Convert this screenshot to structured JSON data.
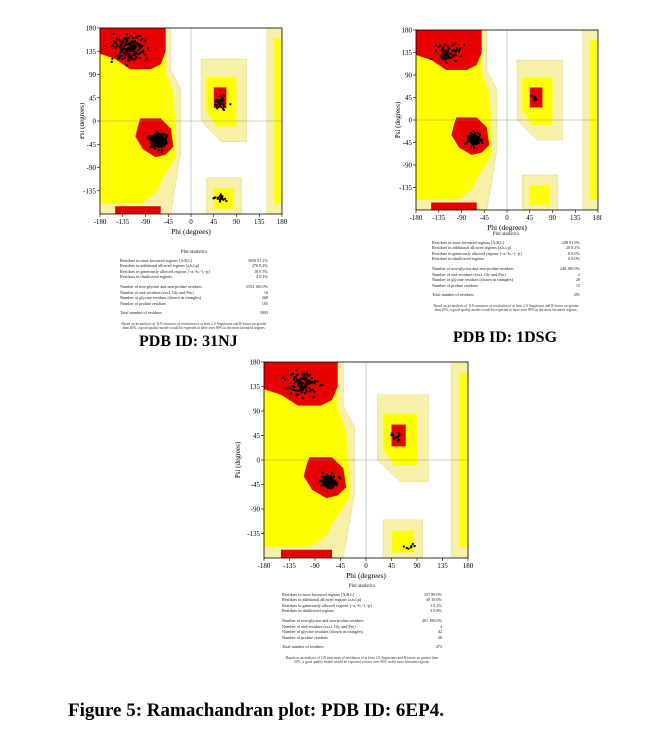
{
  "figure": {
    "caption": "Figure 5: Ramachandran plot: PDB ID: 6EP4.",
    "panels": [
      {
        "id_label": "PDB ID: 31NJ",
        "chart_data": {
          "type": "scatter",
          "xlabel": "Phi (degrees)",
          "ylabel": "Psi (degrees)",
          "xlim": [
            -180,
            180
          ],
          "ylim": [
            -180,
            180
          ],
          "xticks": [
            "-180",
            "-135",
            "-90",
            "-45",
            "0",
            "45",
            "90",
            "135",
            "180"
          ],
          "yticks": [
            "180",
            "135",
            "90",
            "45",
            "0",
            "-45",
            "-90",
            "-135"
          ],
          "grid": true,
          "colors": {
            "core": "#e60000",
            "allowed": "#ffff00",
            "generous": "#f7f0a8",
            "disallowed": "#ffffff"
          },
          "clusters": [
            {
              "region": "beta",
              "phi": -120,
              "psi": 140,
              "spread_phi": 30,
              "spread_psi": 25,
              "count": 160
            },
            {
              "region": "alpha-right",
              "phi": -65,
              "psi": -38,
              "spread_phi": 18,
              "spread_psi": 16,
              "count": 180
            },
            {
              "region": "alpha-left",
              "phi": 58,
              "psi": 35,
              "spread_phi": 14,
              "spread_psi": 14,
              "count": 30
            },
            {
              "region": "scattered",
              "phi": 60,
              "psi": -150,
              "spread_phi": 20,
              "spread_psi": 8,
              "count": 20
            }
          ]
        },
        "stats": {
          "title": "Plot statistics",
          "rows": [
            {
              "label": "Residues in most favoured regions [A,B,L]",
              "count": "3056",
              "pct": "91.1%"
            },
            {
              "label": "Residues in additional allowed regions [a,b,l,p]",
              "count": "276",
              "pct": "8.2%"
            },
            {
              "label": "Residues in generously allowed regions [~a,~b,~l,~p]",
              "count": "18",
              "pct": "0.5%"
            },
            {
              "label": "Residues in disallowed regions",
              "count": "4",
              "pct": "0.1%"
            },
            {
              "label": "Number of non-glycine and non-proline residues",
              "count": "3354",
              "pct": "100.0%"
            },
            {
              "label": "Number of end-residues (excl. Gly and Pro)",
              "count": "16",
              "pct": ""
            },
            {
              "label": "Number of glycine residues (shown as triangles)",
              "count": "368",
              "pct": ""
            },
            {
              "label": "Number of proline residues",
              "count": "165",
              "pct": ""
            },
            {
              "label": "Total number of residues",
              "count": "3903",
              "pct": ""
            }
          ],
          "footnote": "Based on an analysis of 118 structures of resolution of at least 2.0 Angstroms and R-factor no greater than 20%, a good quality model would be expected to have over 90% in the most favoured regions."
        }
      },
      {
        "id_label": "PDB ID: 1DSG",
        "chart_data": {
          "type": "scatter",
          "xlabel": "Phi (degrees)",
          "ylabel": "Psi (degrees)",
          "xlim": [
            -180,
            180
          ],
          "ylim": [
            -180,
            180
          ],
          "xticks": [
            "-180",
            "-135",
            "-90",
            "-45",
            "0",
            "45",
            "90",
            "135",
            "180"
          ],
          "yticks": [
            "180",
            "135",
            "90",
            "45",
            "0",
            "-45",
            "-90",
            "-135"
          ],
          "grid": true,
          "colors": {
            "core": "#e60000",
            "allowed": "#ffff00",
            "generous": "#f7f0a8",
            "disallowed": "#ffffff"
          },
          "clusters": [
            {
              "region": "beta",
              "phi": -115,
              "psi": 135,
              "spread_phi": 25,
              "spread_psi": 20,
              "count": 60
            },
            {
              "region": "alpha-right",
              "phi": -65,
              "psi": -40,
              "spread_phi": 14,
              "spread_psi": 14,
              "count": 90
            },
            {
              "region": "alpha-left",
              "phi": 55,
              "psi": 40,
              "spread_phi": 8,
              "spread_psi": 8,
              "count": 8
            }
          ]
        },
        "stats": {
          "title": "Plot statistics",
          "rows": [
            {
              "label": "Residues in most favoured regions [A,B,L]",
              "count": "228",
              "pct": "91.9%"
            },
            {
              "label": "Residues in additional allowed regions [a,b,l,p]",
              "count": "20",
              "pct": "8.1%"
            },
            {
              "label": "Residues in generously allowed regions [~a,~b,~l,~p]",
              "count": "0",
              "pct": "0.0%"
            },
            {
              "label": "Residues in disallowed regions",
              "count": "0",
              "pct": "0.0%"
            },
            {
              "label": "Number of non-glycine and non-proline residues",
              "count": "248",
              "pct": "100.0%"
            },
            {
              "label": "Number of end-residues (excl. Gly and Pro)",
              "count": "2",
              "pct": ""
            },
            {
              "label": "Number of glycine residues (shown as triangles)",
              "count": "26",
              "pct": ""
            },
            {
              "label": "Number of proline residues",
              "count": "15",
              "pct": ""
            },
            {
              "label": "Total number of residues",
              "count": "291",
              "pct": ""
            }
          ],
          "footnote": "Based on an analysis of 118 structures of resolution of at least 2.0 Angstroms and R-factor no greater than 20%, a good quality model would be expected to have over 90% in the most favoured regions."
        }
      },
      {
        "id_label": "",
        "chart_data": {
          "type": "scatter",
          "xlabel": "Phi (degrees)",
          "ylabel": "Psi (degrees)",
          "xlim": [
            -180,
            180
          ],
          "ylim": [
            -180,
            180
          ],
          "xticks": [
            "-180",
            "-135",
            "-90",
            "-45",
            "0",
            "45",
            "90",
            "135",
            "180"
          ],
          "yticks": [
            "180",
            "135",
            "90",
            "45",
            "0",
            "-45",
            "-90",
            "-135"
          ],
          "grid": true,
          "colors": {
            "core": "#e60000",
            "allowed": "#ffff00",
            "generous": "#f7f0a8",
            "disallowed": "#ffffff"
          },
          "clusters": [
            {
              "region": "beta",
              "phi": -110,
              "psi": 140,
              "spread_phi": 28,
              "spread_psi": 22,
              "count": 110
            },
            {
              "region": "alpha-right",
              "phi": -65,
              "psi": -40,
              "spread_phi": 15,
              "spread_psi": 14,
              "count": 130
            },
            {
              "region": "alpha-left",
              "phi": 55,
              "psi": 40,
              "spread_phi": 10,
              "spread_psi": 10,
              "count": 14
            },
            {
              "region": "scattered",
              "phi": 75,
              "psi": -160,
              "spread_phi": 15,
              "spread_psi": 6,
              "count": 8
            }
          ]
        },
        "stats": {
          "title": "Plot statistics",
          "rows": [
            {
              "label": "Residues in most favoured regions [A,B,L]",
              "count": "357",
              "pct": "89.0%"
            },
            {
              "label": "Residues in additional allowed regions [a,b,l,p]",
              "count": "40",
              "pct": "10.0%"
            },
            {
              "label": "Residues in generously allowed regions [~a,~b,~l,~p]",
              "count": "1",
              "pct": "0.2%"
            },
            {
              "label": "Residues in disallowed regions",
              "count": "3",
              "pct": "0.8%"
            },
            {
              "label": "Number of non-glycine and non-proline residues",
              "count": "401",
              "pct": "100.0%"
            },
            {
              "label": "Number of end-residues (excl. Gly and Pro)",
              "count": "4",
              "pct": ""
            },
            {
              "label": "Number of glycine residues (shown as triangles)",
              "count": "42",
              "pct": ""
            },
            {
              "label": "Number of proline residues",
              "count": "26",
              "pct": ""
            },
            {
              "label": "Total number of residues",
              "count": "473",
              "pct": ""
            }
          ],
          "footnote": "Based on an analysis of 118 structures of resolution of at least 2.0 Angstroms and R-factor no greater than 20%, a good quality model would be expected to have over 90% in the most favoured regions."
        }
      }
    ]
  }
}
